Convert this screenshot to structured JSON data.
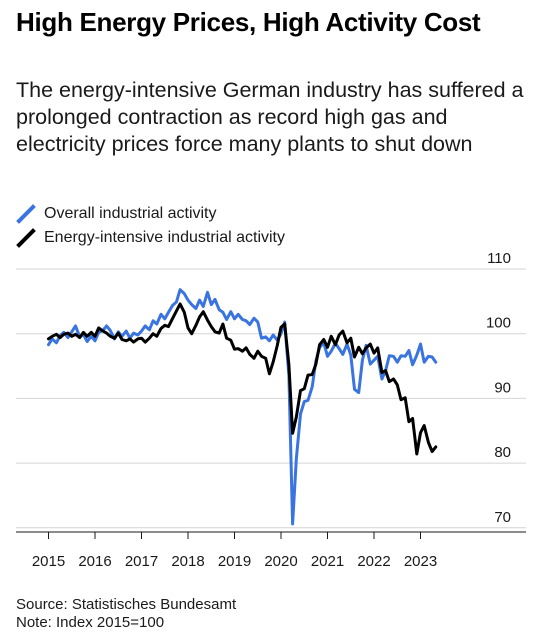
{
  "title": "High Energy Prices, High Activity Cost",
  "subtitle": "The energy-intensive German industry has suffered a prolonged contraction as record high gas and electricity prices force many plants to shut down",
  "source": "Source: Statistisches Bundesamt",
  "note": "Note: Index 2015=100",
  "chart_data": {
    "type": "line",
    "title": "High Energy Prices, High Activity Cost",
    "xlabel": "",
    "ylabel": "",
    "xlim": [
      2015.0,
      2023.75
    ],
    "ylim": [
      67,
      112
    ],
    "x_ticks": [
      2015,
      2016,
      2017,
      2018,
      2019,
      2020,
      2021,
      2022,
      2023
    ],
    "x_tick_labels": [
      "2015",
      "2016",
      "2017",
      "2018",
      "2019",
      "2020",
      "2021",
      "2022",
      "2023"
    ],
    "y_ticks": [
      70,
      80,
      90,
      100,
      110
    ],
    "y_tick_labels": [
      "70",
      "80",
      "90",
      "100",
      "110"
    ],
    "grid": "horizontal",
    "legend": "top-left",
    "series": [
      {
        "name": "Overall industrial activity",
        "color": "#3a74e0",
        "points": [
          [
            2015.0,
            98.3
          ],
          [
            2015.08,
            99.2
          ],
          [
            2015.17,
            98.6
          ],
          [
            2015.25,
            99.7
          ],
          [
            2015.33,
            100.2
          ],
          [
            2015.42,
            99.4
          ],
          [
            2015.5,
            100.3
          ],
          [
            2015.58,
            101.2
          ],
          [
            2015.67,
            99.5
          ],
          [
            2015.75,
            99.9
          ],
          [
            2015.83,
            98.8
          ],
          [
            2015.92,
            99.6
          ],
          [
            2016.0,
            98.9
          ],
          [
            2016.08,
            100.2
          ],
          [
            2016.17,
            100.5
          ],
          [
            2016.25,
            101.2
          ],
          [
            2016.33,
            100.5
          ],
          [
            2016.42,
            99.2
          ],
          [
            2016.5,
            100.3
          ],
          [
            2016.58,
            99.6
          ],
          [
            2016.67,
            100.4
          ],
          [
            2016.75,
            99.3
          ],
          [
            2016.83,
            100.1
          ],
          [
            2016.92,
            99.8
          ],
          [
            2017.0,
            100.4
          ],
          [
            2017.08,
            101.2
          ],
          [
            2017.17,
            100.6
          ],
          [
            2017.25,
            102.0
          ],
          [
            2017.33,
            101.5
          ],
          [
            2017.42,
            103.0
          ],
          [
            2017.5,
            102.3
          ],
          [
            2017.58,
            103.3
          ],
          [
            2017.67,
            104.4
          ],
          [
            2017.75,
            104.9
          ],
          [
            2017.83,
            106.8
          ],
          [
            2017.92,
            106.2
          ],
          [
            2018.0,
            105.2
          ],
          [
            2018.08,
            104.5
          ],
          [
            2018.17,
            103.9
          ],
          [
            2018.25,
            105.2
          ],
          [
            2018.33,
            104.2
          ],
          [
            2018.42,
            106.4
          ],
          [
            2018.5,
            104.5
          ],
          [
            2018.58,
            105.3
          ],
          [
            2018.67,
            103.7
          ],
          [
            2018.75,
            103.3
          ],
          [
            2018.83,
            102.2
          ],
          [
            2018.92,
            103.4
          ],
          [
            2019.0,
            102.3
          ],
          [
            2019.08,
            103.0
          ],
          [
            2019.17,
            102.2
          ],
          [
            2019.25,
            102.0
          ],
          [
            2019.33,
            101.4
          ],
          [
            2019.42,
            102.4
          ],
          [
            2019.5,
            101.8
          ],
          [
            2019.58,
            99.3
          ],
          [
            2019.67,
            99.5
          ],
          [
            2019.75,
            98.9
          ],
          [
            2019.83,
            99.8
          ],
          [
            2019.92,
            99.0
          ],
          [
            2020.0,
            100.0
          ],
          [
            2020.08,
            101.8
          ],
          [
            2020.17,
            93.5
          ],
          [
            2020.25,
            70.6
          ],
          [
            2020.33,
            80.6
          ],
          [
            2020.42,
            87.6
          ],
          [
            2020.5,
            89.5
          ],
          [
            2020.58,
            89.7
          ],
          [
            2020.67,
            91.8
          ],
          [
            2020.75,
            95.8
          ],
          [
            2020.83,
            97.9
          ],
          [
            2020.92,
            98.6
          ],
          [
            2021.0,
            96.5
          ],
          [
            2021.08,
            97.3
          ],
          [
            2021.17,
            98.5
          ],
          [
            2021.25,
            97.7
          ],
          [
            2021.33,
            96.8
          ],
          [
            2021.42,
            98.4
          ],
          [
            2021.5,
            96.7
          ],
          [
            2021.58,
            91.4
          ],
          [
            2021.67,
            90.9
          ],
          [
            2021.75,
            95.9
          ],
          [
            2021.83,
            98.2
          ],
          [
            2021.92,
            95.3
          ],
          [
            2022.0,
            95.9
          ],
          [
            2022.08,
            96.5
          ],
          [
            2022.17,
            93.0
          ],
          [
            2022.25,
            94.3
          ],
          [
            2022.33,
            96.6
          ],
          [
            2022.42,
            96.5
          ],
          [
            2022.5,
            95.6
          ],
          [
            2022.58,
            96.6
          ],
          [
            2022.67,
            96.5
          ],
          [
            2022.75,
            97.4
          ],
          [
            2022.83,
            95.2
          ],
          [
            2022.92,
            96.7
          ],
          [
            2023.0,
            98.4
          ],
          [
            2023.08,
            95.6
          ],
          [
            2023.17,
            96.5
          ],
          [
            2023.25,
            96.4
          ],
          [
            2023.33,
            95.6
          ]
        ]
      },
      {
        "name": "Energy-intensive industrial activity",
        "color": "#000000",
        "points": [
          [
            2015.0,
            99.2
          ],
          [
            2015.08,
            99.6
          ],
          [
            2015.17,
            99.9
          ],
          [
            2015.25,
            99.4
          ],
          [
            2015.33,
            99.9
          ],
          [
            2015.42,
            100.1
          ],
          [
            2015.5,
            99.6
          ],
          [
            2015.58,
            99.9
          ],
          [
            2015.67,
            99.4
          ],
          [
            2015.75,
            100.2
          ],
          [
            2015.83,
            99.6
          ],
          [
            2015.92,
            100.2
          ],
          [
            2016.0,
            99.6
          ],
          [
            2016.08,
            100.9
          ],
          [
            2016.17,
            100.4
          ],
          [
            2016.25,
            100.1
          ],
          [
            2016.33,
            99.6
          ],
          [
            2016.42,
            99.3
          ],
          [
            2016.5,
            100.1
          ],
          [
            2016.58,
            99.1
          ],
          [
            2016.67,
            98.9
          ],
          [
            2016.75,
            99.2
          ],
          [
            2016.83,
            98.7
          ],
          [
            2016.92,
            99.2
          ],
          [
            2017.0,
            99.3
          ],
          [
            2017.08,
            98.7
          ],
          [
            2017.17,
            99.3
          ],
          [
            2017.25,
            100.0
          ],
          [
            2017.33,
            99.6
          ],
          [
            2017.42,
            100.8
          ],
          [
            2017.5,
            101.3
          ],
          [
            2017.58,
            101.1
          ],
          [
            2017.67,
            102.4
          ],
          [
            2017.75,
            103.5
          ],
          [
            2017.83,
            104.6
          ],
          [
            2017.92,
            103.3
          ],
          [
            2018.0,
            100.9
          ],
          [
            2018.08,
            100.0
          ],
          [
            2018.17,
            101.3
          ],
          [
            2018.25,
            102.6
          ],
          [
            2018.33,
            103.4
          ],
          [
            2018.42,
            102.1
          ],
          [
            2018.5,
            101.1
          ],
          [
            2018.58,
            100.3
          ],
          [
            2018.67,
            100.1
          ],
          [
            2018.75,
            101.5
          ],
          [
            2018.83,
            99.3
          ],
          [
            2018.92,
            99.0
          ],
          [
            2019.0,
            97.6
          ],
          [
            2019.08,
            97.7
          ],
          [
            2019.17,
            97.3
          ],
          [
            2019.25,
            97.8
          ],
          [
            2019.33,
            96.8
          ],
          [
            2019.42,
            96.2
          ],
          [
            2019.5,
            97.3
          ],
          [
            2019.58,
            96.5
          ],
          [
            2019.67,
            96.2
          ],
          [
            2019.75,
            93.8
          ],
          [
            2019.83,
            95.6
          ],
          [
            2019.92,
            98.2
          ],
          [
            2020.0,
            101.0
          ],
          [
            2020.08,
            101.5
          ],
          [
            2020.17,
            95.2
          ],
          [
            2020.25,
            84.6
          ],
          [
            2020.33,
            87.1
          ],
          [
            2020.42,
            91.2
          ],
          [
            2020.5,
            91.5
          ],
          [
            2020.58,
            93.6
          ],
          [
            2020.67,
            93.7
          ],
          [
            2020.75,
            95.3
          ],
          [
            2020.83,
            98.3
          ],
          [
            2020.92,
            99.1
          ],
          [
            2021.0,
            97.9
          ],
          [
            2021.08,
            99.6
          ],
          [
            2021.17,
            98.3
          ],
          [
            2021.25,
            99.8
          ],
          [
            2021.33,
            100.4
          ],
          [
            2021.42,
            98.6
          ],
          [
            2021.5,
            99.3
          ],
          [
            2021.58,
            96.4
          ],
          [
            2021.67,
            97.9
          ],
          [
            2021.75,
            96.9
          ],
          [
            2021.83,
            97.8
          ],
          [
            2021.92,
            98.4
          ],
          [
            2022.0,
            97.0
          ],
          [
            2022.08,
            97.8
          ],
          [
            2022.17,
            94.0
          ],
          [
            2022.25,
            94.3
          ],
          [
            2022.33,
            92.6
          ],
          [
            2022.42,
            93.0
          ],
          [
            2022.5,
            92.1
          ],
          [
            2022.58,
            89.8
          ],
          [
            2022.67,
            90.1
          ],
          [
            2022.75,
            86.4
          ],
          [
            2022.83,
            86.9
          ],
          [
            2022.92,
            81.4
          ],
          [
            2023.0,
            84.7
          ],
          [
            2023.08,
            85.8
          ],
          [
            2023.17,
            83.2
          ],
          [
            2023.25,
            81.8
          ],
          [
            2023.33,
            82.5
          ]
        ]
      }
    ]
  }
}
